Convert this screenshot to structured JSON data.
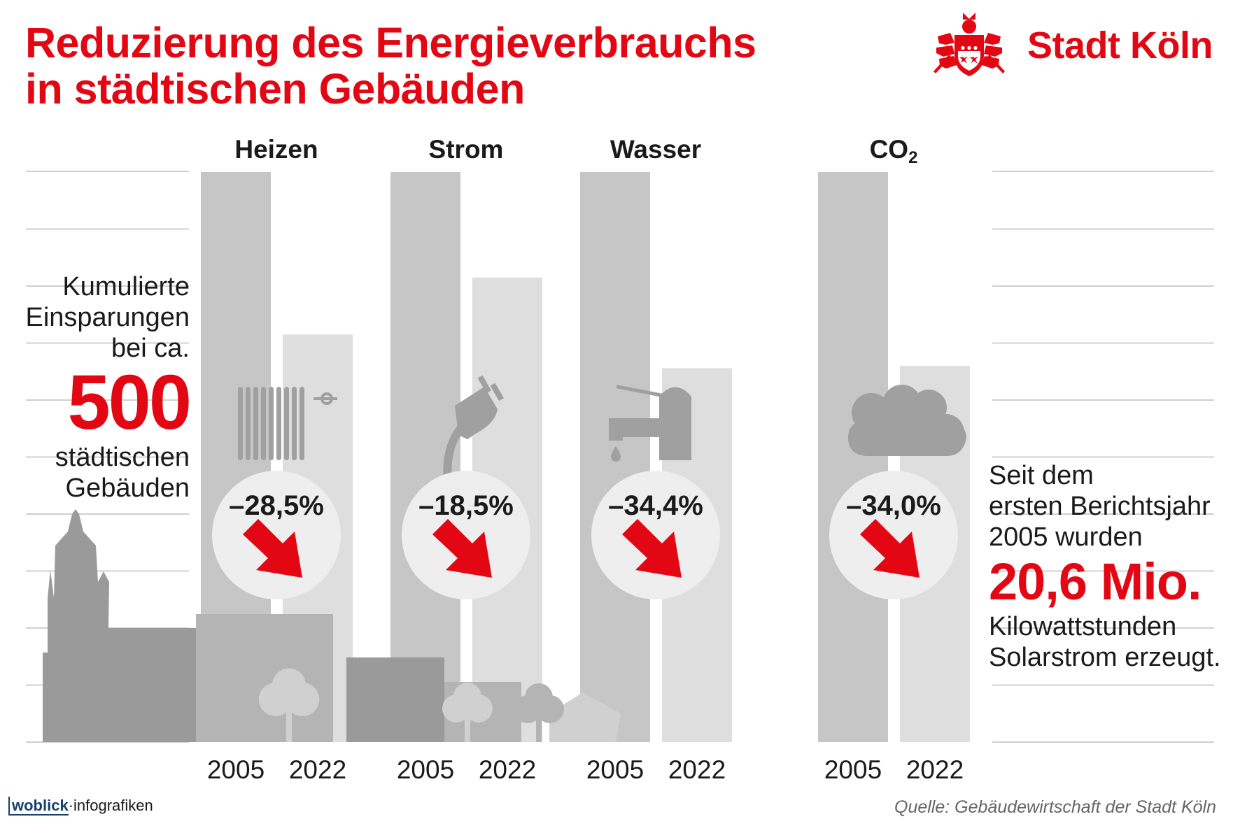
{
  "title": {
    "line1": "Reduzierung des Energieverbrauchs",
    "line2": "in städtischen Gebäuden"
  },
  "logo": {
    "text": "Stadt Köln",
    "icon": "cologne-coat-of-arms-icon",
    "color": "#e30613"
  },
  "left_note": {
    "line1": "Kumulierte",
    "line2": "Einsparungen",
    "line3": "bei ca.",
    "big": "500",
    "line4": "städtischen",
    "line5": "Gebäuden"
  },
  "right_note": {
    "line1": "Seit dem",
    "line2": "ersten Berichtsjahr",
    "line3": "2005 wurden",
    "big": "20,6 Mio.",
    "line4": "Kilowattstunden",
    "line5": "Solarstrom erzeugt."
  },
  "brand": {
    "part1": "woblick",
    "sep": "·",
    "part2": "infografiken"
  },
  "source": "Quelle: Gebäudewirtschaft der Stadt Köln",
  "colors": {
    "accent": "#e30613",
    "bar_2005": "#c6c6c6",
    "bar_2022": "#dedede",
    "icon": "#a0a0a0",
    "badge": "#eeeeee",
    "gridline": "#d0d0d0",
    "skyline_dark": "#9a9a9a",
    "skyline_mid": "#b4b4b4",
    "skyline_light": "#d0d0d0"
  },
  "chart_data": {
    "type": "bar",
    "units": "Index (2005 = 100)",
    "ylim": [
      0,
      100
    ],
    "grid": true,
    "categories": [
      {
        "name": "Heizen",
        "name_sub": "",
        "change_label": "–28,5%",
        "icon": "radiator-icon",
        "values": {
          "2005": 100,
          "2022": 71.5
        }
      },
      {
        "name": "Strom",
        "name_sub": "",
        "change_label": "–18,5%",
        "icon": "power-plug-icon",
        "values": {
          "2005": 100,
          "2022": 81.5
        }
      },
      {
        "name": "Wasser",
        "name_sub": "",
        "change_label": "–34,4%",
        "icon": "water-tap-icon",
        "values": {
          "2005": 100,
          "2022": 65.6
        }
      },
      {
        "name": "CO",
        "name_sub": "2",
        "change_label": "–34,0%",
        "icon": "cloud-icon",
        "values": {
          "2005": 100,
          "2022": 66
        }
      }
    ],
    "series": [
      {
        "name": "2005",
        "color": "#c6c6c6"
      },
      {
        "name": "2022",
        "color": "#dedede"
      }
    ]
  }
}
